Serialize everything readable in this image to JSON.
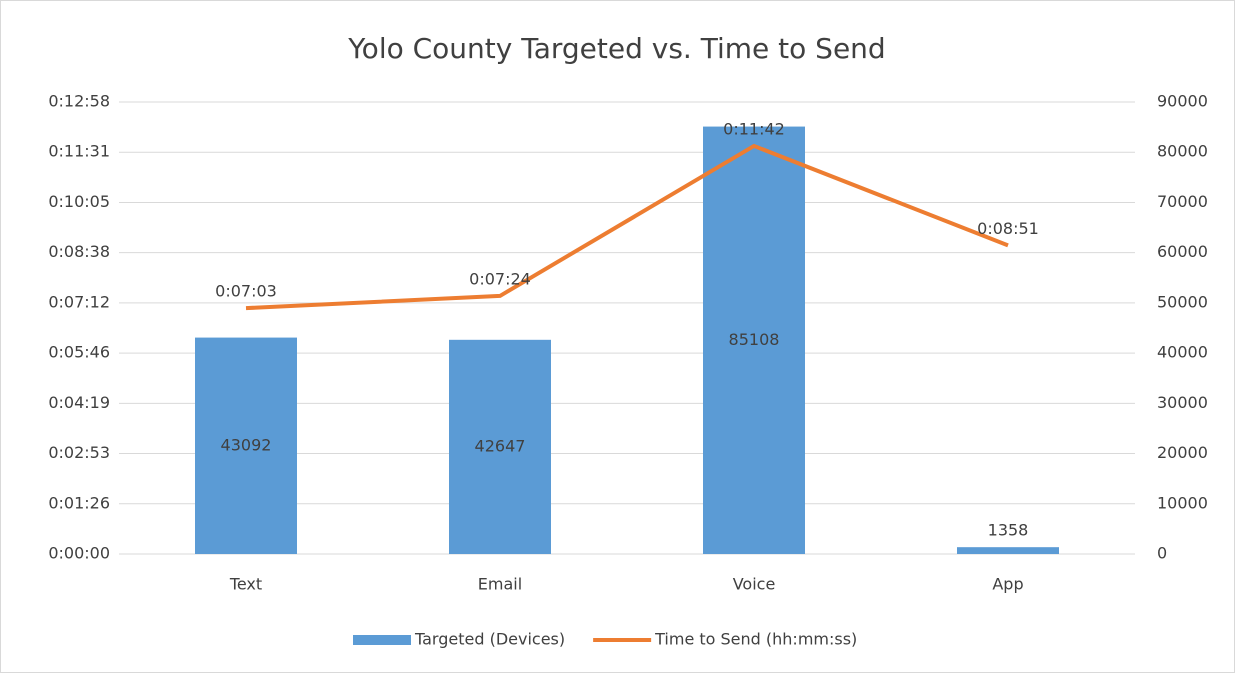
{
  "chart_data": {
    "type": "bar_line",
    "title": "Yolo County Targeted vs. Time to Send",
    "categories": [
      "Text",
      "Email",
      "Voice",
      "App"
    ],
    "series": [
      {
        "name": "Targeted (Devices)",
        "type": "bar",
        "axis": "y2",
        "color": "#5b9bd5",
        "values": [
          43092,
          42647,
          85108,
          1358
        ]
      },
      {
        "name": "Time to Send (hh:mm:ss)",
        "type": "line",
        "axis": "y",
        "color": "#ed7d31",
        "values": [
          423,
          444,
          702,
          531
        ],
        "value_labels": [
          "0:07:03",
          "0:07:24",
          "0:11:42",
          "0:08:51"
        ]
      }
    ],
    "ylim": [
      0,
      777.6
    ],
    "yticks": [
      {
        "value": 0,
        "label": "0:00:00"
      },
      {
        "value": 86.4,
        "label": "0:01:26"
      },
      {
        "value": 172.8,
        "label": "0:02:53"
      },
      {
        "value": 259.2,
        "label": "0:04:19"
      },
      {
        "value": 345.6,
        "label": "0:05:46"
      },
      {
        "value": 432,
        "label": "0:07:12"
      },
      {
        "value": 518.4,
        "label": "0:08:38"
      },
      {
        "value": 604.8,
        "label": "0:10:05"
      },
      {
        "value": 691.2,
        "label": "0:11:31"
      },
      {
        "value": 777.6,
        "label": "0:12:58"
      }
    ],
    "y2lim": [
      0,
      90000
    ],
    "y2ticks": [
      0,
      10000,
      20000,
      30000,
      40000,
      50000,
      60000,
      70000,
      80000,
      90000
    ],
    "grid": true,
    "legend": "bottom"
  }
}
